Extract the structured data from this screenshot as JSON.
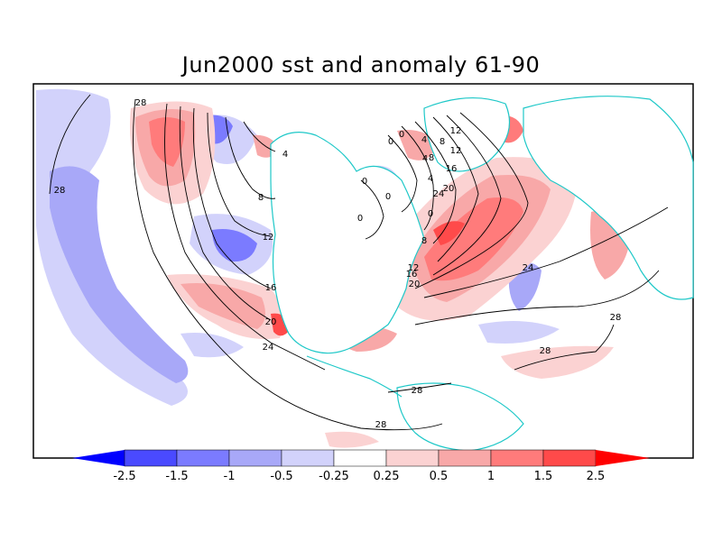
{
  "title": "Jun2000 sst and anomaly 61-90",
  "colors": {
    "land": "#ffffff",
    "coast": "#1ec8c8",
    "contour": "#000000",
    "neg3": "#0000ff",
    "neg2": "#4a4aff",
    "neg1": "#7b7bff",
    "neg0": "#a8a8f8",
    "neg00": "#d2d2fb",
    "pos00": "#fbd2d2",
    "pos0": "#f8a8a8",
    "pos1": "#ff7b7b",
    "pos2": "#ff4a4a",
    "pos3": "#ff0000"
  },
  "colorbar": {
    "ticks": [
      "-2.5",
      "-1.5",
      "-1",
      "-0.5",
      "-0.25",
      "0.25",
      "0.5",
      "1",
      "1.5",
      "2.5"
    ]
  },
  "contour_labels": [
    "28",
    "28",
    "24",
    "20",
    "16",
    "12",
    "8",
    "4",
    "0",
    "0",
    "0",
    "0",
    "0",
    "4",
    "8",
    "12",
    "16",
    "20",
    "24",
    "28",
    "28",
    "28",
    "28",
    "24",
    "20",
    "16",
    "12",
    "8",
    "4",
    "0",
    "4",
    "8",
    "12"
  ]
}
